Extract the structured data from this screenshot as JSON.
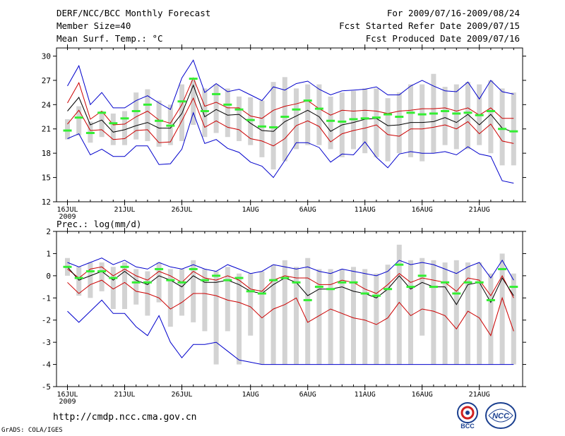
{
  "header": {
    "title": "DERF/NCC/BCC Monthly Forecast",
    "member": "Member Size=40",
    "period": "For 2009/07/16-2009/08/24",
    "started": "Fcst Started Refer Date 2009/07/15",
    "produced": "Fcst Produced Date 2009/07/16"
  },
  "footer": {
    "url": "http://cmdp.ncc.cma.gov.cn",
    "grads": "GrADS: COLA/IGES",
    "logo_bcc": "BCC",
    "logo_ncc": "NCC"
  },
  "colors": {
    "envelope": "#0000cc",
    "spread": "#cc0000",
    "mean": "#000000",
    "obs": "#33ee33",
    "bar": "#d3d3d3"
  },
  "chart_data": [
    {
      "type": "line",
      "title": "Mean Surf. Temp.: °C",
      "ylim": [
        12,
        31
      ],
      "yticks": [
        12,
        15,
        18,
        21,
        24,
        27,
        30
      ],
      "xticks": [
        {
          "day": 0,
          "label": "16JUL",
          "sub": "2009"
        },
        {
          "day": 5,
          "label": "21JUL"
        },
        {
          "day": 10,
          "label": "26JUL"
        },
        {
          "day": 16,
          "label": "1AUG"
        },
        {
          "day": 21,
          "label": "6AUG"
        },
        {
          "day": 26,
          "label": "11AUG"
        },
        {
          "day": 31,
          "label": "16AUG"
        },
        {
          "day": 36,
          "label": "21AUG"
        }
      ],
      "x": [
        0,
        1,
        2,
        3,
        4,
        5,
        6,
        7,
        8,
        9,
        10,
        11,
        12,
        13,
        14,
        15,
        16,
        17,
        18,
        19,
        20,
        21,
        22,
        23,
        24,
        25,
        26,
        27,
        28,
        29,
        30,
        31,
        32,
        33,
        34,
        35,
        36,
        37,
        38,
        39
      ],
      "series": [
        {
          "name": "max",
          "values": [
            26.3,
            28.8,
            24.0,
            25.5,
            23.6,
            23.6,
            24.5,
            25.1,
            24.2,
            23.4,
            27.3,
            29.5,
            25.5,
            26.6,
            25.6,
            25.9,
            25.2,
            24.5,
            26.2,
            25.8,
            26.6,
            26.9,
            25.9,
            25.2,
            25.7,
            25.8,
            25.9,
            26.2,
            25.2,
            25.2,
            26.3,
            27.0,
            26.3,
            25.7,
            25.6,
            26.8,
            24.7,
            27.0,
            25.6,
            25.3
          ]
        },
        {
          "name": "upper",
          "values": [
            24.2,
            26.7,
            22.2,
            23.2,
            21.5,
            21.6,
            22.5,
            23.2,
            22.1,
            21.7,
            24.0,
            27.3,
            23.8,
            24.3,
            23.6,
            23.6,
            22.6,
            22.3,
            23.3,
            23.8,
            24.1,
            24.5,
            23.5,
            22.7,
            23.3,
            23.2,
            23.3,
            23.2,
            22.9,
            23.2,
            23.3,
            23.5,
            23.5,
            23.6,
            23.2,
            23.6,
            22.7,
            23.6,
            22.3,
            22.3
          ]
        },
        {
          "name": "mean",
          "values": [
            23.2,
            24.9,
            21.5,
            22.1,
            20.6,
            20.9,
            21.4,
            21.8,
            21.1,
            21.1,
            22.9,
            26.4,
            22.5,
            23.4,
            22.7,
            22.8,
            21.7,
            20.8,
            20.7,
            21.9,
            22.6,
            23.3,
            22.5,
            20.7,
            21.5,
            21.8,
            22.2,
            22.3,
            21.4,
            21.5,
            21.8,
            21.8,
            21.9,
            22.4,
            21.8,
            22.8,
            21.5,
            22.8,
            21.1,
            20.6
          ]
        },
        {
          "name": "lower",
          "values": [
            21.6,
            23.3,
            20.8,
            20.9,
            19.7,
            19.8,
            20.8,
            20.9,
            19.3,
            19.4,
            22.0,
            24.8,
            21.2,
            22.0,
            21.2,
            20.9,
            19.8,
            19.5,
            18.9,
            19.8,
            21.4,
            22.0,
            21.3,
            19.4,
            20.4,
            20.8,
            21.1,
            21.5,
            20.3,
            20.1,
            21.0,
            21.0,
            21.2,
            21.5,
            21.0,
            21.9,
            20.4,
            21.6,
            19.5,
            19.2
          ]
        },
        {
          "name": "min",
          "values": [
            19.8,
            20.4,
            17.8,
            18.5,
            17.6,
            17.6,
            18.9,
            18.9,
            16.6,
            16.7,
            18.5,
            23.0,
            19.2,
            19.7,
            18.6,
            18.1,
            16.9,
            16.4,
            15.0,
            17.1,
            19.3,
            19.3,
            18.7,
            16.9,
            17.9,
            17.8,
            19.4,
            17.5,
            16.2,
            17.9,
            18.2,
            18.0,
            18.0,
            18.2,
            17.8,
            18.8,
            17.9,
            17.6,
            14.6,
            14.3
          ]
        },
        {
          "name": "obs",
          "values": [
            20.8,
            22.4,
            20.5,
            23.0,
            21.7,
            22.3,
            23.2,
            24.0,
            22.0,
            21.4,
            24.4,
            27.2,
            23.2,
            25.3,
            24.0,
            23.4,
            22.1,
            21.3,
            21.2,
            22.5,
            23.4,
            24.5,
            23.5,
            22.0,
            21.9,
            22.2,
            22.3,
            22.4,
            22.8,
            22.5,
            23.0,
            22.8,
            22.9,
            23.2,
            22.9,
            23.0,
            22.7,
            23.2,
            21.0,
            20.7
          ]
        }
      ],
      "bar_low": [
        19.7,
        20.2,
        19.3,
        20.0,
        19.0,
        19.0,
        19.7,
        19.5,
        18.8,
        19.0,
        19.5,
        21.5,
        20.0,
        20.5,
        20.0,
        19.5,
        19.0,
        17.5,
        16.0,
        17.0,
        18.5,
        19.0,
        19.0,
        18.5,
        17.5,
        18.5,
        18.0,
        17.5,
        17.0,
        18.0,
        17.5,
        17.0,
        18.0,
        19.0,
        18.5,
        18.5,
        19.0,
        18.0,
        16.5,
        16.5
      ],
      "bar_high": [
        22.2,
        23.8,
        21.9,
        23.2,
        22.9,
        23.2,
        25.5,
        25.9,
        24.5,
        24.0,
        26.5,
        27.0,
        26.0,
        26.5,
        26.0,
        25.0,
        24.9,
        24.5,
        26.8,
        27.4,
        26.0,
        26.5,
        26.5,
        25.0,
        25.5,
        25.7,
        26.0,
        26.0,
        24.8,
        25.5,
        26.5,
        26.5,
        27.8,
        26.2,
        26.5,
        26.8,
        26.5,
        27.0,
        26.0,
        25.5
      ]
    },
    {
      "type": "line",
      "title": "Prec.: log(mm/d)",
      "ylim": [
        -5,
        2
      ],
      "yticks": [
        -5,
        -4,
        -3,
        -2,
        -1,
        0,
        1,
        2
      ],
      "xticks": [
        {
          "day": 0,
          "label": "16JUL",
          "sub": "2009"
        },
        {
          "day": 5,
          "label": "21JUL"
        },
        {
          "day": 10,
          "label": "26JUL"
        },
        {
          "day": 16,
          "label": "1AUG"
        },
        {
          "day": 21,
          "label": "6AUG"
        },
        {
          "day": 26,
          "label": "11AUG"
        },
        {
          "day": 31,
          "label": "16AUG"
        },
        {
          "day": 36,
          "label": "21AUG"
        }
      ],
      "x": [
        0,
        1,
        2,
        3,
        4,
        5,
        6,
        7,
        8,
        9,
        10,
        11,
        12,
        13,
        14,
        15,
        16,
        17,
        18,
        19,
        20,
        21,
        22,
        23,
        24,
        25,
        26,
        27,
        28,
        29,
        30,
        31,
        32,
        33,
        34,
        35,
        36,
        37,
        38,
        39
      ],
      "series": [
        {
          "name": "max",
          "values": [
            0.6,
            0.4,
            0.6,
            0.8,
            0.5,
            0.7,
            0.4,
            0.3,
            0.6,
            0.4,
            0.3,
            0.5,
            0.3,
            0.2,
            0.5,
            0.3,
            0.1,
            0.2,
            0.5,
            0.4,
            0.3,
            0.4,
            0.2,
            0.1,
            0.3,
            0.2,
            0.1,
            0.0,
            0.2,
            0.7,
            0.5,
            0.6,
            0.5,
            0.3,
            0.1,
            0.4,
            0.6,
            -0.1,
            0.7,
            -0.2
          ]
        },
        {
          "name": "upper",
          "values": [
            0.3,
            -0.1,
            0.3,
            0.4,
            0.0,
            0.3,
            0.0,
            -0.2,
            0.2,
            0.0,
            -0.3,
            0.2,
            -0.1,
            -0.2,
            0.0,
            -0.2,
            -0.6,
            -0.7,
            -0.2,
            0.0,
            -0.1,
            -0.1,
            -0.4,
            -0.4,
            -0.2,
            -0.3,
            -0.6,
            -0.8,
            -0.4,
            0.1,
            -0.3,
            -0.1,
            -0.2,
            -0.3,
            -0.7,
            -0.1,
            -0.2,
            -0.9,
            0.0,
            -1.0
          ]
        },
        {
          "name": "mean",
          "values": [
            0.4,
            -0.2,
            0.0,
            0.2,
            -0.2,
            0.2,
            -0.2,
            -0.4,
            0.0,
            -0.2,
            -0.5,
            0.0,
            -0.3,
            -0.3,
            -0.2,
            -0.4,
            -0.7,
            -0.8,
            -0.4,
            -0.1,
            -0.3,
            -0.9,
            -0.6,
            -0.6,
            -0.5,
            -0.7,
            -0.8,
            -1.0,
            -0.6,
            0.0,
            -0.6,
            -0.3,
            -0.5,
            -0.5,
            -1.3,
            -0.4,
            -0.3,
            -1.2,
            -0.1,
            -0.9
          ]
        },
        {
          "name": "lower",
          "values": [
            -0.3,
            -0.8,
            -0.4,
            -0.2,
            -0.6,
            -0.3,
            -0.7,
            -0.8,
            -1.0,
            -1.5,
            -1.2,
            -0.8,
            -0.8,
            -0.9,
            -1.1,
            -1.2,
            -1.4,
            -1.9,
            -1.5,
            -1.3,
            -1.0,
            -2.1,
            -1.8,
            -1.5,
            -1.7,
            -1.9,
            -2.0,
            -2.2,
            -1.9,
            -1.2,
            -1.8,
            -1.5,
            -1.6,
            -1.8,
            -2.4,
            -1.6,
            -1.9,
            -2.7,
            -1.0,
            -2.5
          ]
        },
        {
          "name": "min",
          "values": [
            -1.6,
            -2.1,
            -1.6,
            -1.1,
            -1.7,
            -1.7,
            -2.3,
            -2.7,
            -1.8,
            -3.0,
            -3.7,
            -3.1,
            -3.1,
            -3.0,
            -3.4,
            -3.8,
            -3.9,
            -4.0,
            -4.0,
            -4.0,
            -4.0,
            -4.0,
            -4.0,
            -4.0,
            -4.0,
            -4.0,
            -4.0,
            -4.0,
            -4.0,
            -4.0,
            -4.0,
            -4.0,
            -4.0,
            -4.0,
            -4.0,
            -4.0,
            -4.0,
            -4.0,
            -4.0,
            -4.0
          ]
        },
        {
          "name": "obs",
          "values": [
            0.4,
            -0.1,
            0.2,
            0.2,
            -0.1,
            0.4,
            -0.3,
            -0.3,
            0.3,
            -0.2,
            -0.3,
            0.3,
            -0.2,
            0.0,
            -0.2,
            -0.1,
            -0.7,
            -0.8,
            -0.2,
            -0.1,
            -0.3,
            -1.1,
            -0.5,
            -0.6,
            -0.3,
            -0.3,
            -0.8,
            -0.9,
            -0.6,
            0.5,
            -0.5,
            0.0,
            -0.5,
            -0.3,
            -0.8,
            -0.3,
            -0.3,
            -1.1,
            0.3,
            -0.5
          ]
        }
      ],
      "bar_low": [
        0.0,
        -0.9,
        -1.0,
        -0.7,
        -1.5,
        -1.5,
        -1.3,
        -1.8,
        -1.2,
        -2.3,
        -1.8,
        -2.1,
        -2.5,
        -4.0,
        -2.5,
        -4.0,
        -2.7,
        -4.0,
        -4.0,
        -4.0,
        -4.0,
        -4.0,
        -4.0,
        -4.0,
        -4.0,
        -4.0,
        -4.0,
        -4.0,
        -4.0,
        -4.0,
        -4.0,
        -2.7,
        -4.0,
        -4.0,
        -4.0,
        -4.0,
        -4.0,
        -4.0,
        -4.0,
        -4.0
      ],
      "bar_high": [
        0.8,
        0.4,
        0.6,
        0.6,
        0.4,
        0.6,
        0.3,
        0.2,
        0.6,
        0.3,
        0.3,
        0.7,
        0.3,
        0.2,
        0.4,
        0.1,
        0.1,
        0.2,
        0.5,
        0.7,
        0.4,
        0.8,
        0.3,
        0.3,
        0.3,
        0.4,
        0.3,
        0.1,
        0.5,
        1.4,
        0.7,
        0.8,
        0.7,
        0.6,
        0.7,
        0.6,
        0.6,
        0.1,
        1.0,
        0.1
      ]
    }
  ]
}
